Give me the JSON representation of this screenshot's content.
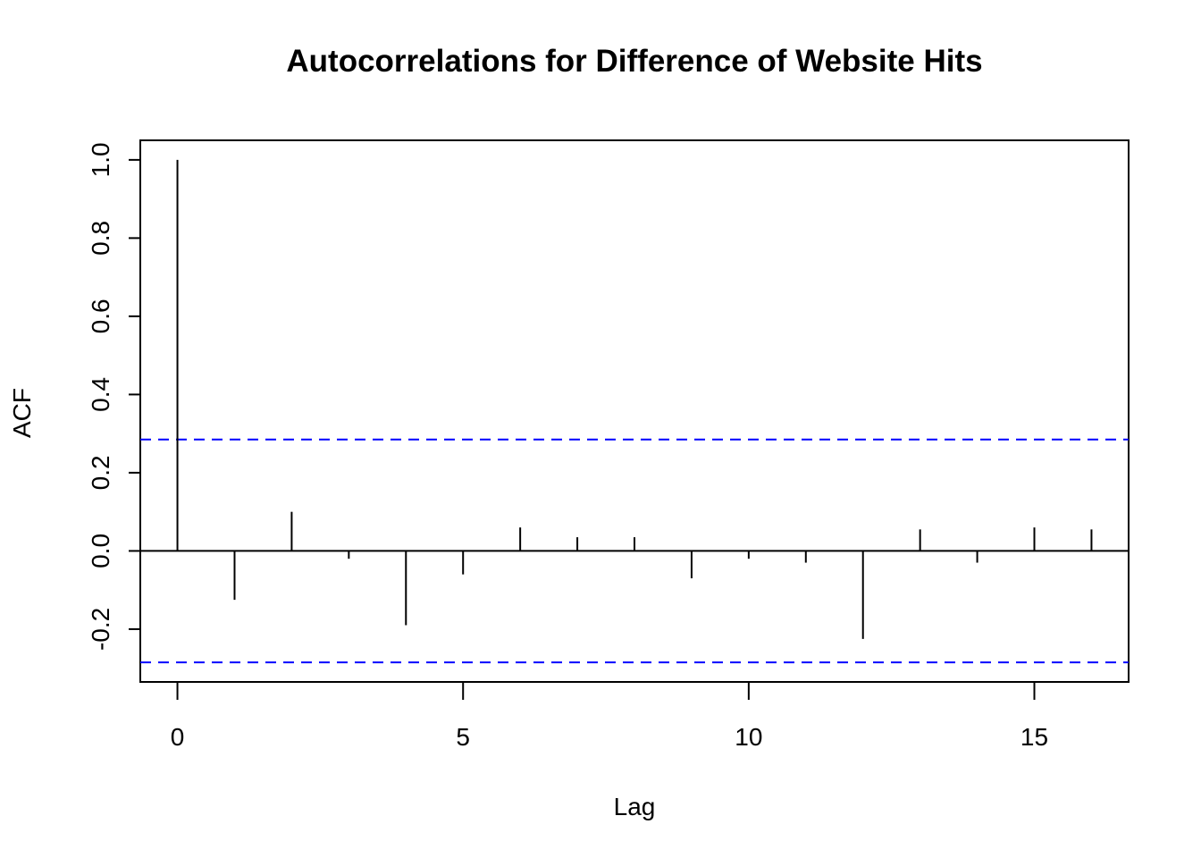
{
  "chart_data": {
    "type": "bar",
    "subtype": "acf-stem",
    "title": "Autocorrelations for Difference of Website Hits",
    "xlabel": "Lag",
    "ylabel": "ACF",
    "x": [
      0,
      1,
      2,
      3,
      4,
      5,
      6,
      7,
      8,
      9,
      10,
      11,
      12,
      13,
      14,
      15,
      16
    ],
    "values": [
      1.0,
      -0.125,
      0.1,
      -0.02,
      -0.19,
      -0.06,
      0.06,
      0.035,
      0.035,
      -0.07,
      -0.02,
      -0.03,
      -0.225,
      0.055,
      -0.03,
      0.06,
      0.055
    ],
    "confidence_bounds": [
      0.285,
      -0.285
    ],
    "xlim": [
      -0.65,
      16.65
    ],
    "ylim": [
      -0.335,
      1.05
    ],
    "x_ticks": [
      0,
      5,
      10,
      15
    ],
    "x_tick_labels": [
      "0",
      "5",
      "10",
      "15"
    ],
    "y_ticks": [
      -0.2,
      0.0,
      0.2,
      0.4,
      0.6,
      0.8,
      1.0
    ],
    "y_tick_labels": [
      "-0.2",
      "0.0",
      "0.2",
      "0.4",
      "0.6",
      "0.8",
      "1.0"
    ],
    "grid": false,
    "legend": "none",
    "colors": {
      "stem": "#000000",
      "confidence": "#0000ff",
      "zero_line": "#000000"
    }
  }
}
